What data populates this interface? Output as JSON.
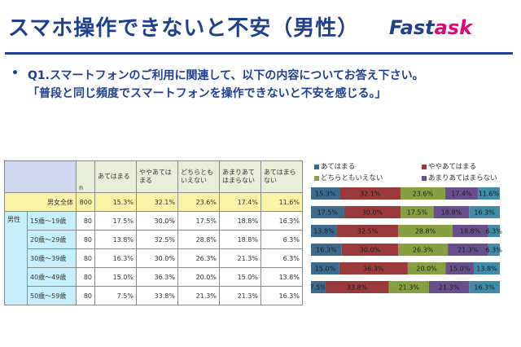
{
  "header": {
    "title": "スマホ操作できないと不安（男性）",
    "logo_part1": "Fast",
    "logo_part2": "ask"
  },
  "question": {
    "bullet": "•",
    "line1": "Q1.スマートフォンのご利用に関連して、以下の内容についてお答え下さい。",
    "line2": "「普段と同じ頻度でスマートフォンを操作できないと不安を感じる。」"
  },
  "table": {
    "n_header": "n",
    "headers": [
      "あてはまる",
      "ややあてはまる",
      "どちらともいえない",
      "あまりあてはまらない",
      "あてはまらない"
    ],
    "group_label": "男性",
    "rows": [
      {
        "label": "男女全体",
        "n": "800",
        "cells": [
          "15.3%",
          "32.1%",
          "23.6%",
          "17.4%",
          "11.6%"
        ]
      },
      {
        "label": "15歳～19歳",
        "n": "80",
        "cells": [
          "17.5%",
          "30.0%",
          "17.5%",
          "18.8%",
          "16.3%"
        ]
      },
      {
        "label": "20歳～29歳",
        "n": "80",
        "cells": [
          "13.8%",
          "32.5%",
          "28.8%",
          "18.8%",
          "6.3%"
        ]
      },
      {
        "label": "30歳～39歳",
        "n": "80",
        "cells": [
          "16.3%",
          "30.0%",
          "26.3%",
          "21.3%",
          "6.3%"
        ]
      },
      {
        "label": "40歳～49歳",
        "n": "80",
        "cells": [
          "15.0%",
          "36.3%",
          "20.0%",
          "15.0%",
          "13.8%"
        ]
      },
      {
        "label": "50歳～59歳",
        "n": "80",
        "cells": [
          "7.5%",
          "33.8%",
          "21.3%",
          "21.3%",
          "16.3%"
        ]
      }
    ]
  },
  "chart_data": {
    "type": "bar",
    "stacked": true,
    "orientation": "horizontal",
    "categories": [
      "男女全体",
      "15歳～19歳",
      "20歳～29歳",
      "30歳～39歳",
      "40歳～49歳",
      "50歳～59歳"
    ],
    "series": [
      {
        "name": "あてはまる",
        "color": "#3d6b8f",
        "values": [
          15.3,
          17.5,
          13.8,
          16.3,
          15.0,
          7.5
        ]
      },
      {
        "name": "ややあてはまる",
        "color": "#9b3a3a",
        "values": [
          32.1,
          30.0,
          32.5,
          30.0,
          36.3,
          33.8
        ]
      },
      {
        "name": "どちらともいえない",
        "color": "#86a042",
        "values": [
          23.6,
          17.5,
          28.8,
          26.3,
          20.0,
          21.3
        ]
      },
      {
        "name": "あまりあてはまらない",
        "color": "#6a4f8f",
        "values": [
          17.4,
          18.8,
          18.8,
          21.3,
          15.0,
          21.3
        ]
      },
      {
        "name": "あてはまらない",
        "color": "#3f8ba8",
        "values": [
          11.6,
          16.3,
          6.3,
          6.3,
          13.8,
          16.3
        ]
      }
    ],
    "labels": [
      [
        "15.3%",
        "32.1%",
        "23.6%",
        "17.4%",
        "11.6%"
      ],
      [
        "17.5%",
        "30.0%",
        "17.5%",
        "18.8%",
        "16.3%"
      ],
      [
        "13.8%",
        "32.5%",
        "28.8%",
        "18.8%",
        "6.3%"
      ],
      [
        "16.3%",
        "30.0%",
        "26.3%",
        "21.3%",
        "6.3%"
      ],
      [
        "15.0%",
        "36.3%",
        "20.0%",
        "15.0%",
        "13.8%"
      ],
      [
        "7.5%",
        "33.8%",
        "21.3%",
        "21.3%",
        "16.3%"
      ]
    ],
    "xlim": [
      0,
      100
    ],
    "legend_position": "top"
  }
}
